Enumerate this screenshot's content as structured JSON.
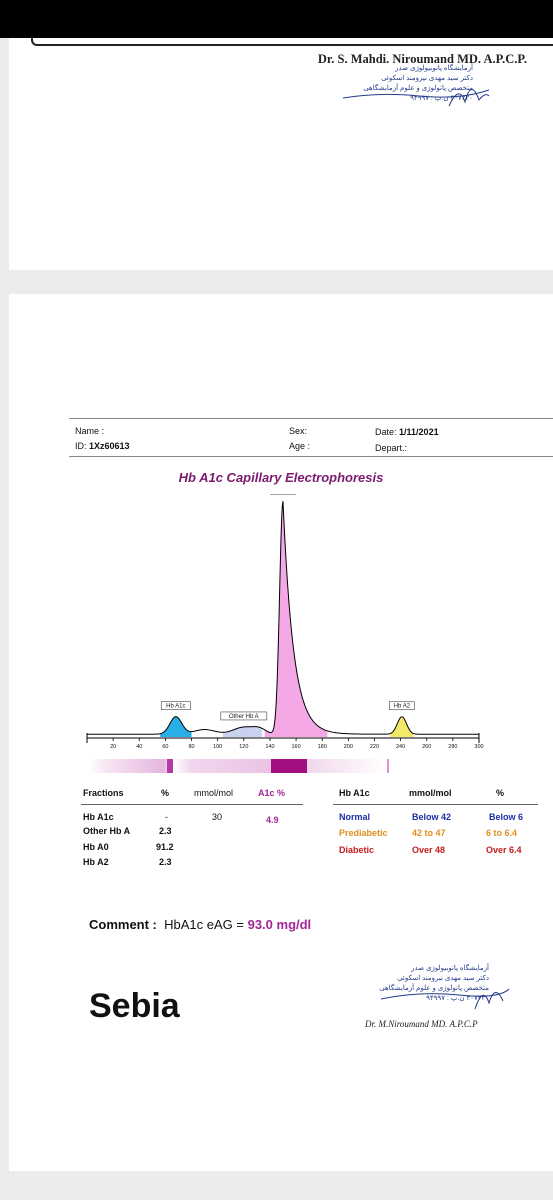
{
  "page1": {
    "doctor": "Dr. S. Mahdi. Niroumand MD. A.P.C.P.",
    "stamp_lines": [
      "آزمایشگاه پاتوبیولوژی صدر",
      "دکتر سید مهدی نیرومند اسکوئی",
      "متخصص پاتولوژی و علوم آزمایشگاهی",
      "۳۰۷۲۲۰ ن.پ : ۹۴۹۹۷"
    ]
  },
  "patient": {
    "name_label": "Name :",
    "id_label": "ID:",
    "id_value": "1Xz60613",
    "sex_label": "Sex:",
    "age_label": "Age :",
    "date_label": "Date:",
    "date_value": "1/11/2021",
    "depart_label": "Depart.:"
  },
  "report_title": "Hb A1c Capillary Electrophoresis",
  "chart_data": {
    "type": "line",
    "x_ticks": [
      20,
      40,
      60,
      80,
      100,
      120,
      140,
      160,
      180,
      200,
      220,
      240,
      260,
      280,
      300
    ],
    "xlim": [
      0,
      300
    ],
    "peaks": [
      {
        "name": "Hb A1c",
        "x": 68,
        "height": 0.075
      },
      {
        "name": "Other Hb A",
        "x": 120,
        "height": 0.03
      },
      {
        "name": "Hb A0",
        "x": 150,
        "height": 1.0
      },
      {
        "name": "Hb A2",
        "x": 241,
        "height": 0.075
      }
    ],
    "colors": {
      "hba1c": "#29aee6",
      "hba0": "#f4a8e6",
      "hba2": "#f2e86a",
      "line": "#000000"
    }
  },
  "fractions": {
    "headers": {
      "fraction": "Fractions",
      "pct": "%",
      "mmol": "mmol/mol",
      "a1c": "A1c %"
    },
    "rows": [
      {
        "name": "Hb A1c",
        "pct": "-",
        "mmol": "30",
        "a1c": "4.9"
      },
      {
        "name": "Other Hb A",
        "pct": "2.3",
        "mmol": "",
        "a1c": ""
      },
      {
        "name": "Hb A0",
        "pct": "91.2",
        "mmol": "",
        "a1c": ""
      },
      {
        "name": "Hb A2",
        "pct": "2.3",
        "mmol": "",
        "a1c": ""
      }
    ]
  },
  "reference": {
    "headers": {
      "name": "Hb A1c",
      "mmol": "mmol/mol",
      "pct": "%"
    },
    "rows": [
      {
        "name": "Normal",
        "mmol": "Below 42",
        "pct": "Below 6",
        "color": "#1c2fa8"
      },
      {
        "name": "Prediabetic",
        "mmol": "42 to 47",
        "pct": "6 to 6.4",
        "color": "#e0901c"
      },
      {
        "name": "Diabetic",
        "mmol": "Over 48",
        "pct": "Over 6.4",
        "color": "#c41a1a"
      }
    ]
  },
  "comment": {
    "label": "Comment :",
    "text": "HbA1c eAG = ",
    "value": "93.0 mg/dl"
  },
  "brand": "Sebia",
  "signature_text": "Dr. M.Niroumand MD. A.P.C.P",
  "colors": {
    "accent_title": "#7b1a6e",
    "a1c_value": "#a5259a"
  }
}
